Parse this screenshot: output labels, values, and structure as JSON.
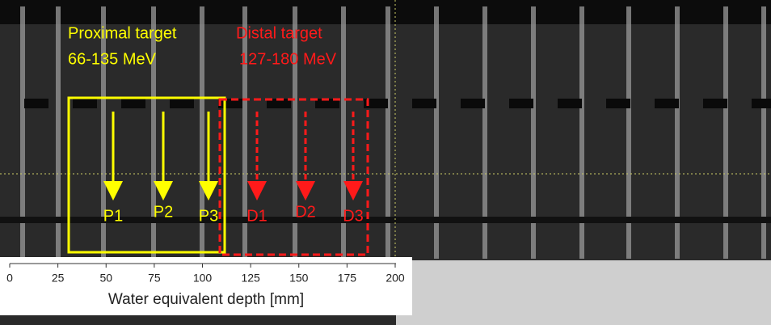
{
  "annotations": {
    "proximal": {
      "title": "Proximal target",
      "energy": "66-135 MeV"
    },
    "distal": {
      "title": "Distal target",
      "energy": "127-180 MeV"
    },
    "points": [
      "P1",
      "P2",
      "P3",
      "D1",
      "D2",
      "D3"
    ]
  },
  "axis": {
    "label": "Water equivalent depth [mm]",
    "xlim": [
      0,
      200
    ],
    "xticks": [
      0,
      25,
      50,
      75,
      100,
      125,
      150,
      175,
      200
    ]
  }
}
